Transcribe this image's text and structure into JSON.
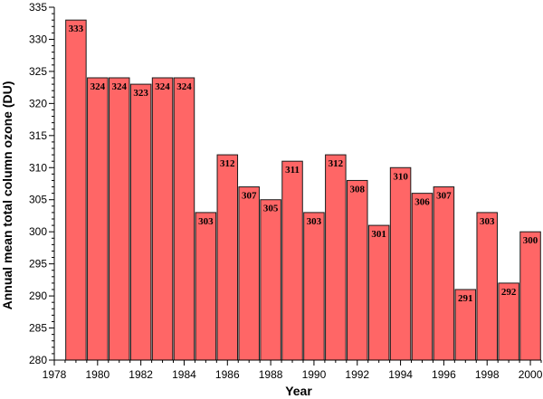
{
  "chart_data": {
    "type": "bar",
    "title": "",
    "xlabel": "Year",
    "ylabel": "Annual mean total column ozone (DU)",
    "x": [
      1979,
      1980,
      1981,
      1982,
      1983,
      1984,
      1985,
      1986,
      1987,
      1988,
      1989,
      1990,
      1991,
      1992,
      1993,
      1994,
      1995,
      1996,
      1997,
      1998,
      1999,
      2000
    ],
    "values": [
      333,
      324,
      324,
      323,
      324,
      324,
      303,
      312,
      307,
      305,
      311,
      303,
      312,
      308,
      301,
      310,
      306,
      307,
      291,
      303,
      292,
      300
    ],
    "data_labels": [
      "333",
      "324",
      "324",
      "323",
      "324",
      "324",
      "303",
      "312",
      "307",
      "305",
      "311",
      "303",
      "312",
      "308",
      "301",
      "310",
      "306",
      "307",
      "291",
      "303",
      "292",
      "300"
    ],
    "xlim": [
      1978,
      2000.5
    ],
    "ylim": [
      280,
      335
    ],
    "x_ticks": [
      "1978",
      "1980",
      "1982",
      "1984",
      "1986",
      "1988",
      "1990",
      "1992",
      "1994",
      "1996",
      "1998",
      "2000"
    ],
    "y_ticks": [
      "280",
      "285",
      "290",
      "295",
      "300",
      "305",
      "310",
      "315",
      "320",
      "325",
      "330",
      "335"
    ],
    "grid": false,
    "colors": {
      "bar_fill": "#ff6666",
      "bar_edge": "#1a1a1a",
      "axis": "#000000"
    }
  }
}
